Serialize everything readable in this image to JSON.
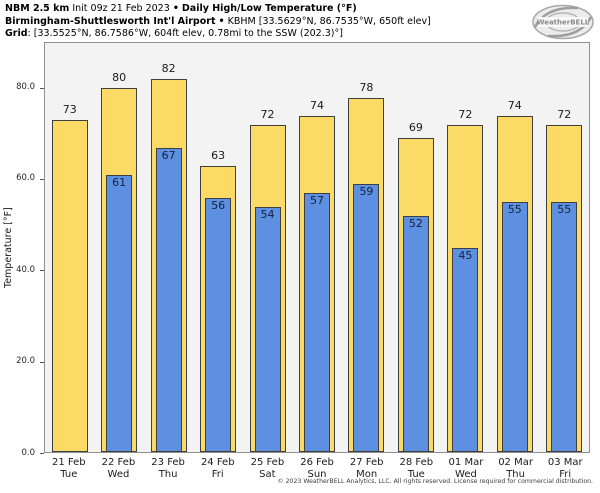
{
  "header": {
    "model_name": "NBM 2.5 km",
    "init_time": "Init 09z 21 Feb 2023",
    "bullet": "•",
    "chart_title": "Daily High/Low Temperature (°F)",
    "station_name": "Birmingham-Shuttlesworth Int'l Airport",
    "station_info": "KBHM [33.5629°N, 86.7535°W, 650ft elev]",
    "grid_label": "Grid",
    "grid_info": ": [33.5525°N, 86.7586°W, 604ft elev, 0.78mi to the SSW (202.3)°]"
  },
  "logo": {
    "brand": "WeatherBELL"
  },
  "chart_data": {
    "type": "bar",
    "title": "Daily High/Low Temperature (°F)",
    "xlabel": "",
    "ylabel": "Temperature [°F]",
    "ylim": [
      0,
      90
    ],
    "grid": false,
    "legend_position": "none",
    "plot_background": "#f3f3f3",
    "yticks": [
      {
        "value": 80,
        "label": "80.0"
      },
      {
        "value": 60,
        "label": "60.0"
      },
      {
        "value": 40,
        "label": "40.0"
      },
      {
        "value": 20,
        "label": "20.0"
      },
      {
        "value": 0,
        "label": "0.0"
      }
    ],
    "categories": [
      {
        "date": "21 Feb",
        "day": "Tue"
      },
      {
        "date": "22 Feb",
        "day": "Wed"
      },
      {
        "date": "23 Feb",
        "day": "Thu"
      },
      {
        "date": "24 Feb",
        "day": "Fri"
      },
      {
        "date": "25 Feb",
        "day": "Sat"
      },
      {
        "date": "26 Feb",
        "day": "Sun"
      },
      {
        "date": "27 Feb",
        "day": "Mon"
      },
      {
        "date": "28 Feb",
        "day": "Tue"
      },
      {
        "date": "01 Mar",
        "day": "Wed"
      },
      {
        "date": "02 Mar",
        "day": "Thu"
      },
      {
        "date": "03 Mar",
        "day": "Fri"
      }
    ],
    "series": [
      {
        "name": "Daily High",
        "color": "#FCDA66",
        "values": [
          73,
          80,
          82,
          63,
          72,
          74,
          78,
          69,
          72,
          74,
          72
        ]
      },
      {
        "name": "Daily Low",
        "color": "#5E90E2",
        "values": [
          null,
          61,
          67,
          56,
          54,
          57,
          59,
          52,
          45,
          55,
          55
        ]
      }
    ]
  },
  "footer": {
    "copyright": "© 2023 WeatherBELL Analytics, LLC. All rights reserved. License required for commercial distribution."
  }
}
